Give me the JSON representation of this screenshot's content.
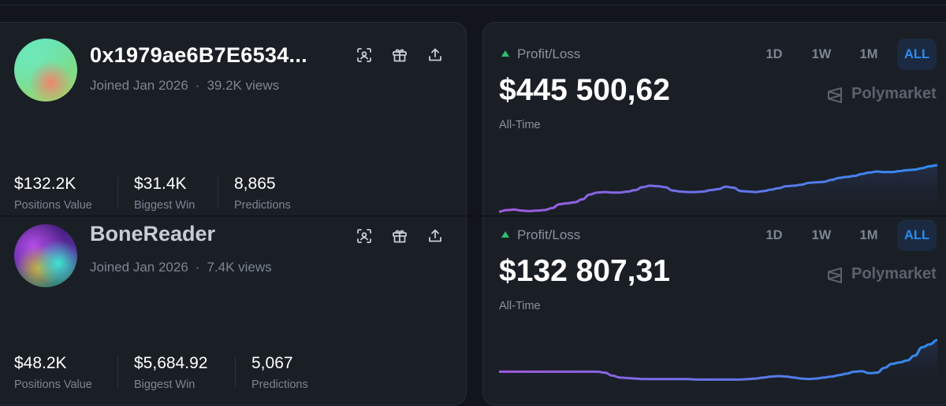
{
  "cards": [
    {
      "username": "0x1979ae6B7E6534...",
      "joined": "Joined Jan 2026",
      "views": "39.2K views",
      "stats": [
        {
          "value": "$132.2K",
          "label": "Positions Value"
        },
        {
          "value": "$31.4K",
          "label": "Biggest Win"
        },
        {
          "value": "8,865",
          "label": "Predictions"
        }
      ],
      "pnl_label": "Profit/Loss",
      "pnl_amount": "$445 500,62",
      "period_label": "All-Time",
      "timeframes": [
        "1D",
        "1W",
        "1M",
        "ALL"
      ],
      "active_timeframe": "ALL",
      "brand": "Polymarket",
      "chart_data": {
        "type": "area",
        "y": [
          0.05,
          0.08,
          0.09,
          0.07,
          0.06,
          0.07,
          0.08,
          0.12,
          0.2,
          0.22,
          0.24,
          0.3,
          0.4,
          0.44,
          0.45,
          0.44,
          0.44,
          0.46,
          0.49,
          0.55,
          0.58,
          0.57,
          0.55,
          0.48,
          0.46,
          0.45,
          0.45,
          0.46,
          0.49,
          0.51,
          0.56,
          0.54,
          0.47,
          0.46,
          0.45,
          0.47,
          0.5,
          0.53,
          0.57,
          0.58,
          0.6,
          0.64,
          0.65,
          0.66,
          0.7,
          0.74,
          0.76,
          0.78,
          0.82,
          0.85,
          0.87,
          0.86,
          0.86,
          0.88,
          0.9,
          0.91,
          0.94,
          0.98,
          1.0
        ],
        "colors": {
          "start": "#a259e0",
          "end": "#2e8cf0"
        }
      }
    },
    {
      "username": "BoneReader",
      "joined": "Joined Jan 2026",
      "views": "7.4K views",
      "stats": [
        {
          "value": "$48.2K",
          "label": "Positions Value"
        },
        {
          "value": "$5,684.92",
          "label": "Biggest Win"
        },
        {
          "value": "5,067",
          "label": "Predictions"
        }
      ],
      "pnl_label": "Profit/Loss",
      "pnl_amount": "$132 807,31",
      "period_label": "All-Time",
      "timeframes": [
        "1D",
        "1W",
        "1M",
        "ALL"
      ],
      "active_timeframe": "ALL",
      "brand": "Polymarket",
      "chart_data": {
        "type": "area",
        "y": [
          0.3,
          0.3,
          0.3,
          0.3,
          0.3,
          0.3,
          0.3,
          0.3,
          0.3,
          0.3,
          0.3,
          0.3,
          0.3,
          0.3,
          0.28,
          0.22,
          0.18,
          0.17,
          0.16,
          0.15,
          0.15,
          0.15,
          0.15,
          0.15,
          0.15,
          0.15,
          0.14,
          0.14,
          0.14,
          0.14,
          0.14,
          0.14,
          0.14,
          0.15,
          0.16,
          0.18,
          0.2,
          0.21,
          0.2,
          0.18,
          0.16,
          0.15,
          0.16,
          0.18,
          0.2,
          0.23,
          0.26,
          0.3,
          0.31,
          0.27,
          0.28,
          0.38,
          0.46,
          0.49,
          0.53,
          0.63,
          0.8,
          0.86,
          0.95
        ],
        "colors": {
          "start": "#a259e0",
          "end": "#2e8cf0"
        }
      }
    }
  ]
}
